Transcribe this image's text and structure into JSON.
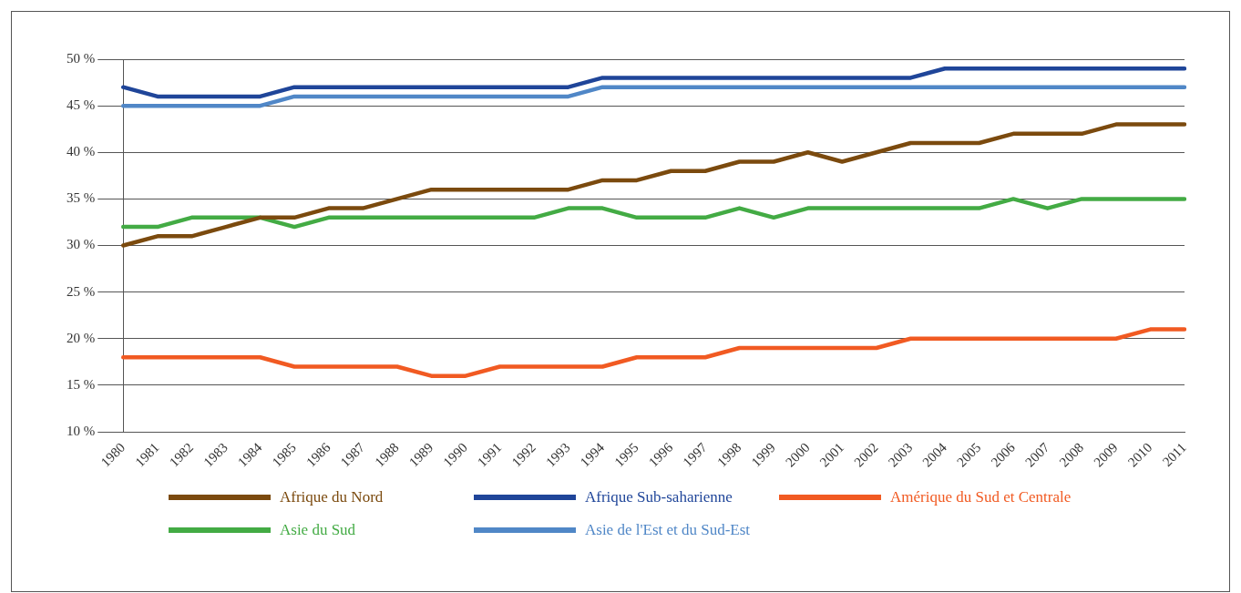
{
  "chart_data": {
    "type": "line",
    "categories": [
      "1980",
      "1981",
      "1982",
      "1983",
      "1984",
      "1985",
      "1986",
      "1987",
      "1988",
      "1989",
      "1990",
      "1991",
      "1992",
      "1993",
      "1994",
      "1995",
      "1996",
      "1997",
      "1998",
      "1999",
      "2000",
      "2001",
      "2002",
      "2003",
      "2004",
      "2005",
      "2006",
      "2007",
      "2008",
      "2009",
      "2010",
      "2011"
    ],
    "series": [
      {
        "name": "Afrique du Nord",
        "color": "#7b4a0e",
        "values": [
          30,
          31,
          31,
          32,
          33,
          33,
          34,
          34,
          35,
          36,
          36,
          36,
          36,
          36,
          37,
          37,
          38,
          38,
          39,
          39,
          40,
          39,
          40,
          41,
          41,
          41,
          42,
          42,
          42,
          43,
          43,
          43
        ]
      },
      {
        "name": "Afrique Sub-saharienne",
        "color": "#1f4599",
        "values": [
          47,
          46,
          46,
          46,
          46,
          47,
          47,
          47,
          47,
          47,
          47,
          47,
          47,
          47,
          48,
          48,
          48,
          48,
          48,
          48,
          48,
          48,
          48,
          48,
          49,
          49,
          49,
          49,
          49,
          49,
          49,
          49
        ]
      },
      {
        "name": "Amérique du Sud et Centrale",
        "color": "#f15a22",
        "values": [
          18,
          18,
          18,
          18,
          18,
          17,
          17,
          17,
          17,
          16,
          16,
          17,
          17,
          17,
          17,
          18,
          18,
          18,
          19,
          19,
          19,
          19,
          19,
          20,
          20,
          20,
          20,
          20,
          20,
          20,
          21,
          21
        ]
      },
      {
        "name": "Asie du Sud",
        "color": "#43ab44",
        "values": [
          32,
          32,
          33,
          33,
          33,
          32,
          33,
          33,
          33,
          33,
          33,
          33,
          33,
          34,
          34,
          33,
          33,
          33,
          34,
          33,
          34,
          34,
          34,
          34,
          34,
          34,
          35,
          34,
          35,
          35,
          35,
          35
        ]
      },
      {
        "name": "Asie de l'Est et du Sud-Est",
        "color": "#5087c7",
        "values": [
          45,
          45,
          45,
          45,
          45,
          46,
          46,
          46,
          46,
          46,
          46,
          46,
          46,
          46,
          47,
          47,
          47,
          47,
          47,
          47,
          47,
          47,
          47,
          47,
          47,
          47,
          47,
          47,
          47,
          47,
          47,
          47
        ]
      }
    ],
    "ylim": [
      10,
      50
    ],
    "yticks": [
      {
        "value": 10,
        "label": "10 %"
      },
      {
        "value": 15,
        "label": "15 %"
      },
      {
        "value": 20,
        "label": "20 %"
      },
      {
        "value": 25,
        "label": "25 %"
      },
      {
        "value": 30,
        "label": "30 %"
      },
      {
        "value": 35,
        "label": "35 %"
      },
      {
        "value": 40,
        "label": "40 %"
      },
      {
        "value": 45,
        "label": "45 %"
      },
      {
        "value": 50,
        "label": "50 %"
      }
    ],
    "grid": "y",
    "legend": "bottom",
    "marker": "none",
    "line_style": "solid"
  }
}
